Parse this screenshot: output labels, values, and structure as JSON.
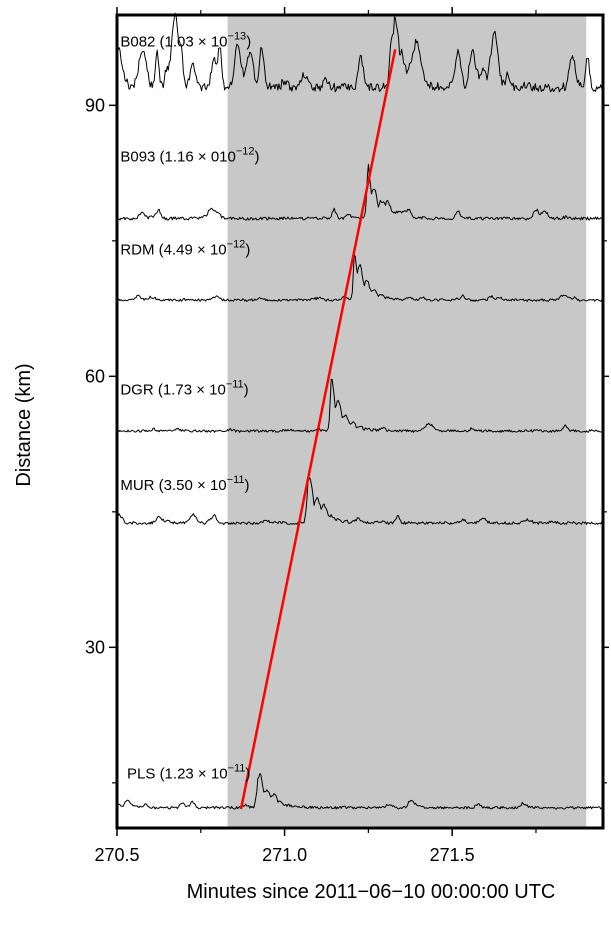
{
  "chart_data": {
    "type": "line",
    "xlabel": "Minutes since 2011−06−10 00:00:00 UTC",
    "ylabel": "Distance (km)",
    "xlim": [
      270.5,
      271.95
    ],
    "ylim": [
      10,
      100
    ],
    "x_ticks": [
      {
        "value": 270.5,
        "label": "270.5"
      },
      {
        "value": 271.0,
        "label": "271.0"
      },
      {
        "value": 271.5,
        "label": "271.5"
      }
    ],
    "y_ticks": [
      {
        "value": 30,
        "label": "30"
      },
      {
        "value": 60,
        "label": "60"
      },
      {
        "value": 90,
        "label": "90"
      }
    ],
    "shaded_window": {
      "x_start": 270.83,
      "x_end": 271.9,
      "color": "#c8c8c8"
    },
    "move_out_line": {
      "x": [
        270.87,
        271.33
      ],
      "y": [
        12.1,
        96.2
      ],
      "color": "#ff0000"
    },
    "stations": [
      {
        "name": "B082",
        "base": "1.03",
        "times": "×",
        "ten": "10",
        "exponent": "−13",
        "label_x": 270.51,
        "label_y": 96.5,
        "baseline_km": 91.5,
        "amp_km": 2.8,
        "noise": 1.4,
        "peak_x": 271.33,
        "peak_amp": 5.5,
        "seed": 3
      },
      {
        "name": "B093",
        "base": "1.16",
        "times": "×",
        "ten": "010",
        "exponent": "−12",
        "label_x": 270.51,
        "label_y": 83.8,
        "baseline_km": 77.3,
        "amp_km": 1.0,
        "noise": 0.35,
        "peak_x": 271.25,
        "peak_amp": 5.6,
        "seed": 7
      },
      {
        "name": "RDM",
        "base": "4.49",
        "times": "×",
        "ten": "10",
        "exponent": "−12",
        "label_x": 270.51,
        "label_y": 73.5,
        "baseline_km": 68.3,
        "amp_km": 0.8,
        "noise": 0.15,
        "peak_x": 271.21,
        "peak_amp": 6.0,
        "seed": 11
      },
      {
        "name": "DGR",
        "base": "1.73",
        "times": "×",
        "ten": "10",
        "exponent": "−11",
        "label_x": 270.51,
        "label_y": 58.0,
        "baseline_km": 53.8,
        "amp_km": 0.8,
        "noise": 0.15,
        "peak_x": 271.14,
        "peak_amp": 6.0,
        "seed": 17
      },
      {
        "name": "MUR",
        "base": "3.50",
        "times": "×",
        "ten": "10",
        "exponent": "−11",
        "label_x": 270.51,
        "label_y": 47.4,
        "baseline_km": 43.6,
        "amp_km": 0.9,
        "noise": 0.35,
        "peak_x": 271.07,
        "peak_amp": 5.8,
        "seed": 23
      },
      {
        "name": "PLS",
        "base": "1.23",
        "times": "×",
        "ten": "10",
        "exponent": "−11",
        "label_x": 270.53,
        "label_y": 15.5,
        "baseline_km": 12.1,
        "amp_km": 0.8,
        "noise": 0.25,
        "peak_x": 270.92,
        "peak_amp": 4.2,
        "seed": 31
      }
    ]
  }
}
